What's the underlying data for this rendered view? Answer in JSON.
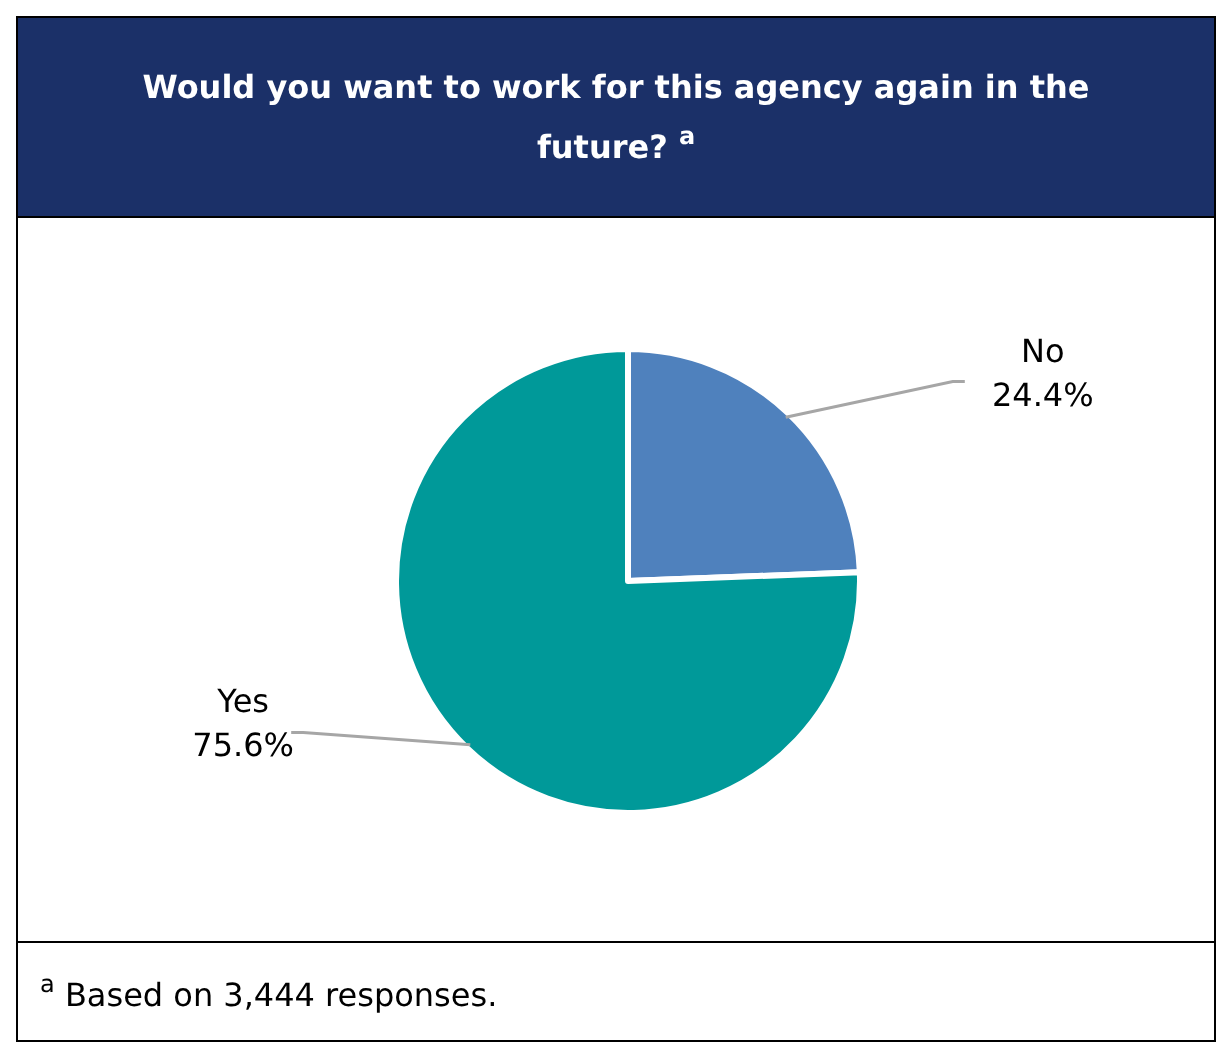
{
  "chart_data": {
    "type": "pie",
    "title": "Would you want to work for this agency again in the future? $^{a}$",
    "categories": [
      "No",
      "Yes"
    ],
    "values": [
      24.4,
      75.6
    ],
    "colors": [
      "#4f81bd",
      "#009999"
    ],
    "value_labels": [
      "24.4%",
      "75.6%"
    ],
    "legend": false,
    "annotations": [
      "$^{a}$ Based on 3,444 responses."
    ]
  }
}
